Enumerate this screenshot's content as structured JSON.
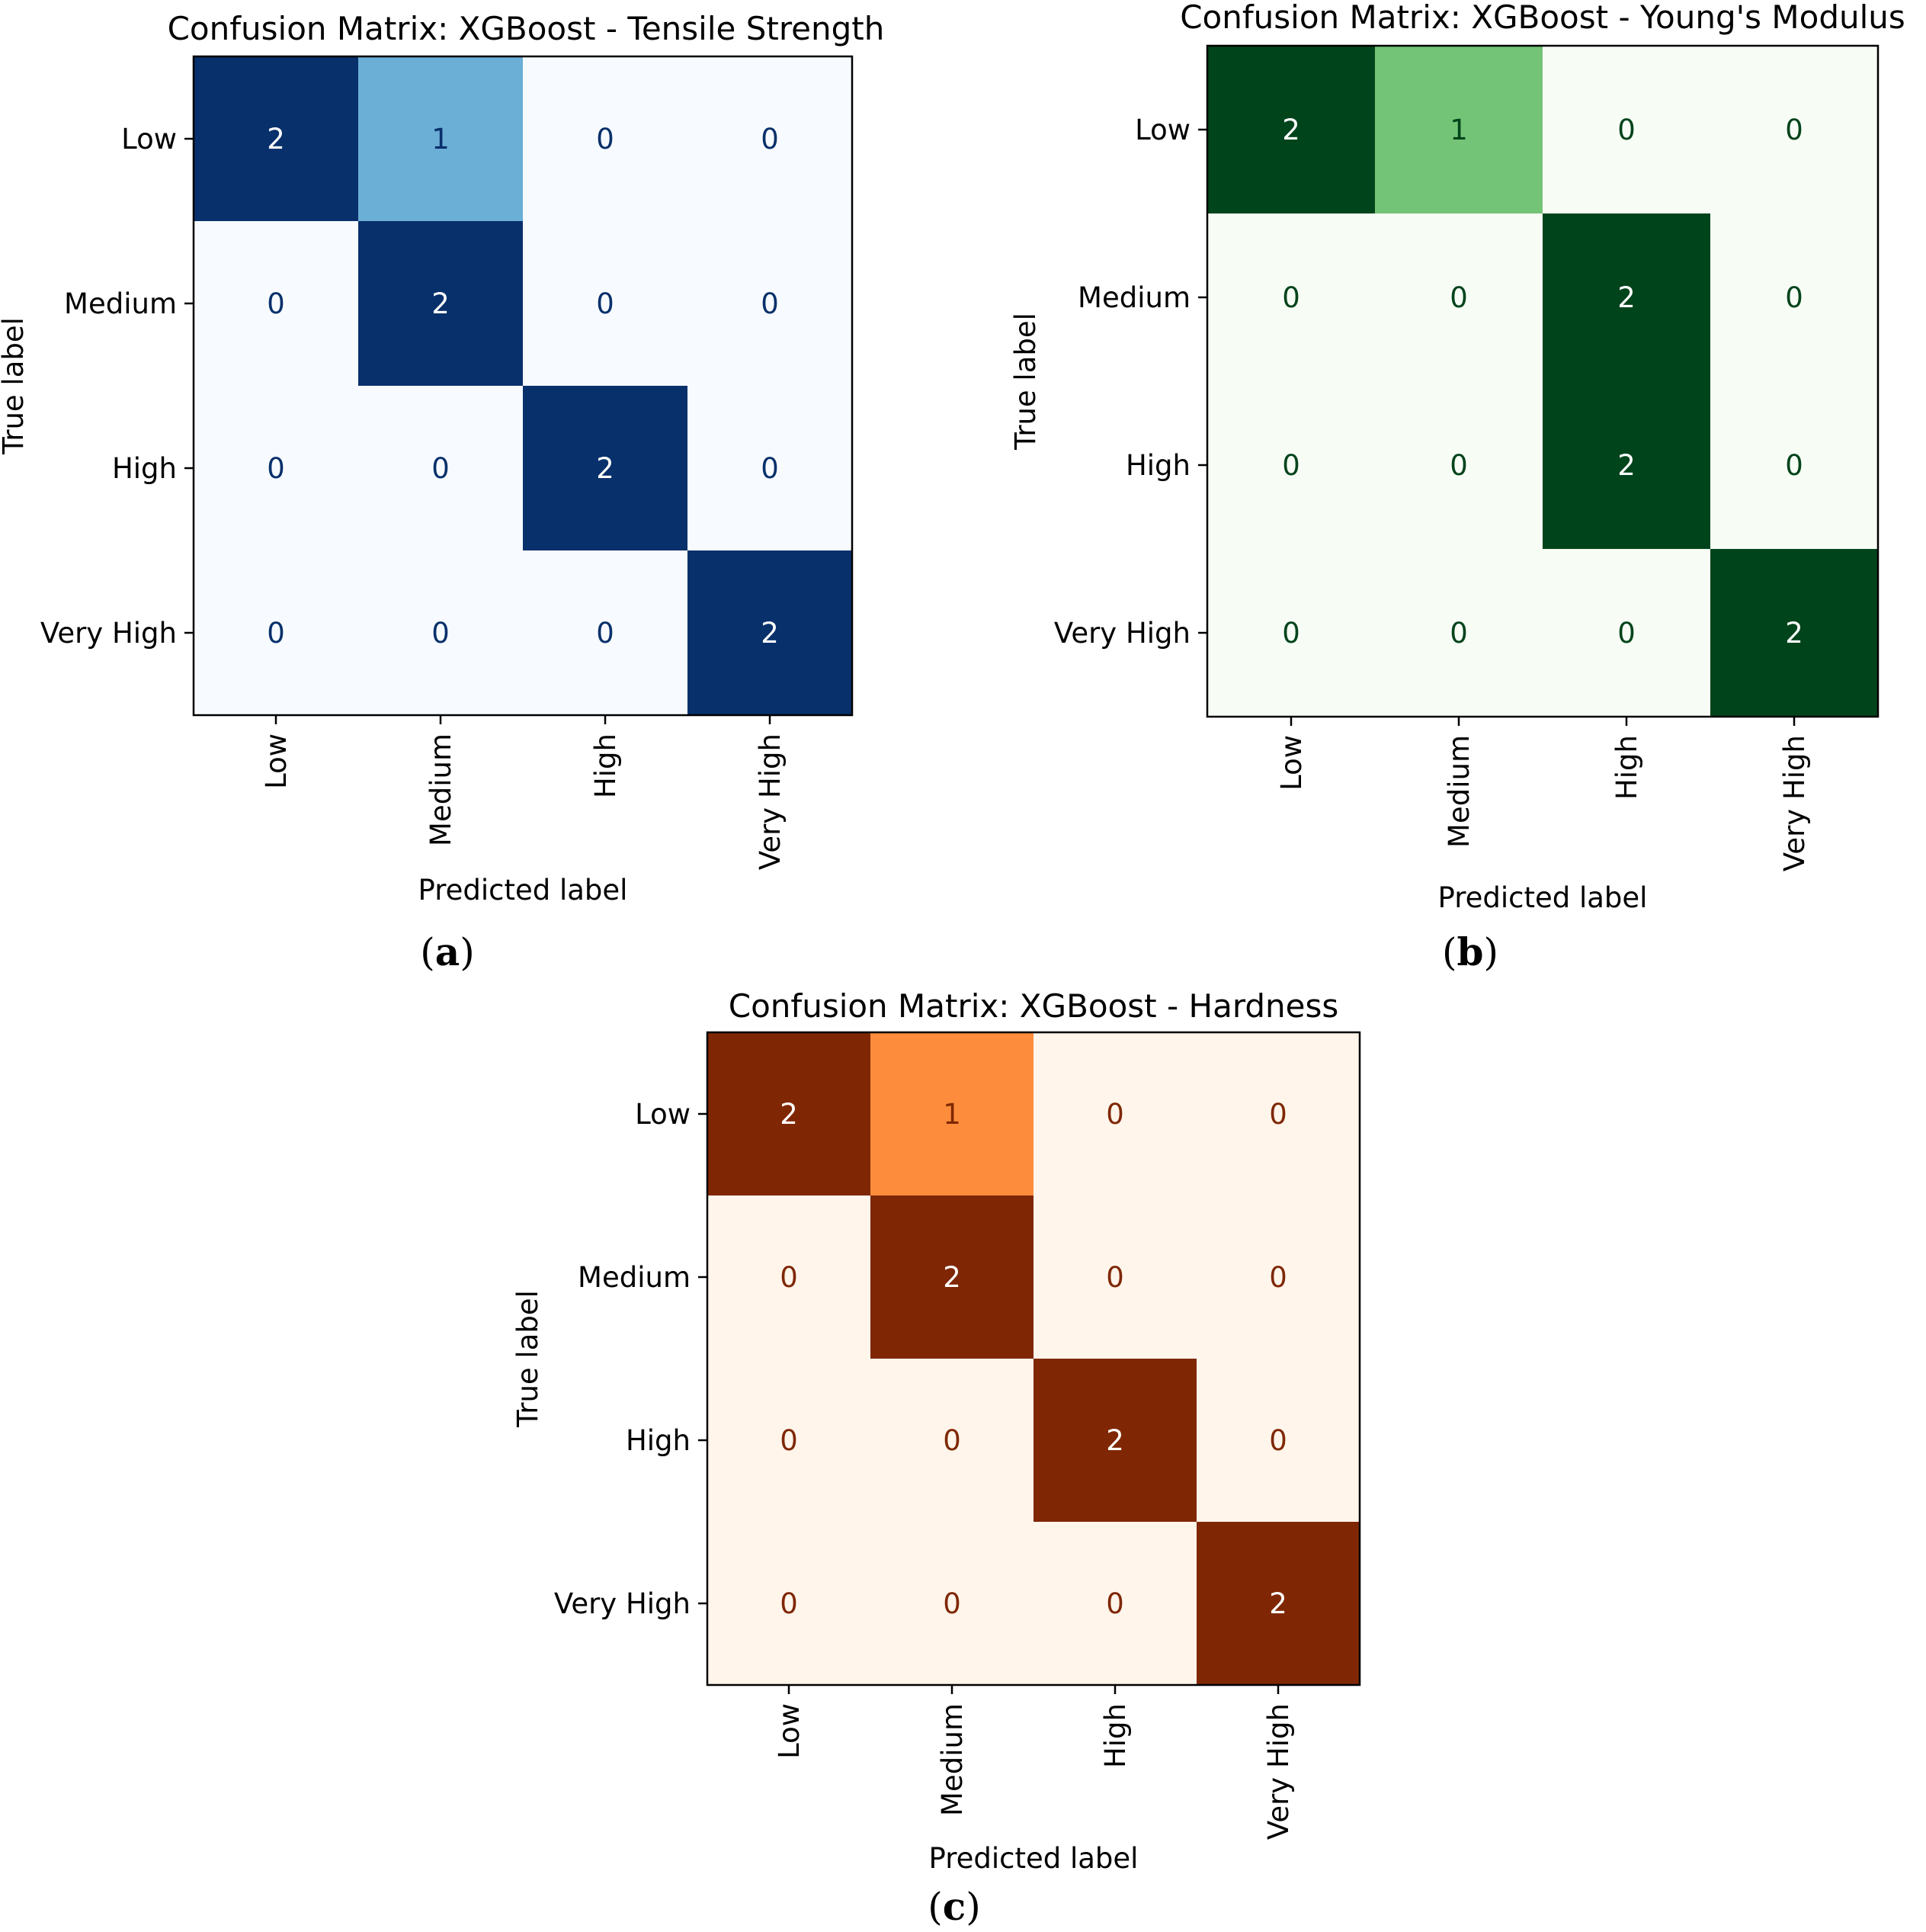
{
  "chart_data": [
    {
      "type": "heatmap",
      "panel": "a",
      "title": "Confusion Matrix: XGBoost - Tensile Strength",
      "xlabel": "Predicted label",
      "ylabel": "True label",
      "row_labels": [
        "Low",
        "Medium",
        "High",
        "Very High"
      ],
      "col_labels": [
        "Low",
        "Medium",
        "High",
        "Very High"
      ],
      "matrix": [
        [
          2,
          1,
          0,
          0
        ],
        [
          0,
          2,
          0,
          0
        ],
        [
          0,
          0,
          2,
          0
        ],
        [
          0,
          0,
          0,
          2
        ]
      ],
      "value_range": [
        0,
        2
      ],
      "colormap": {
        "low": "#f7fbff",
        "mid": "#6baed6",
        "high": "#08306b"
      },
      "text_colors": {
        "on_dark": "#ffffff",
        "on_light": "#08306b"
      }
    },
    {
      "type": "heatmap",
      "panel": "b",
      "title": "Confusion Matrix: XGBoost - Young's Modulus",
      "xlabel": "Predicted label",
      "ylabel": "True label",
      "row_labels": [
        "Low",
        "Medium",
        "High",
        "Very High"
      ],
      "col_labels": [
        "Low",
        "Medium",
        "High",
        "Very High"
      ],
      "matrix": [
        [
          2,
          1,
          0,
          0
        ],
        [
          0,
          0,
          2,
          0
        ],
        [
          0,
          0,
          2,
          0
        ],
        [
          0,
          0,
          0,
          2
        ]
      ],
      "value_range": [
        0,
        2
      ],
      "colormap": {
        "low": "#f7fcf5",
        "mid": "#73c476",
        "high": "#00441b"
      },
      "text_colors": {
        "on_dark": "#ffffff",
        "on_light": "#00441b"
      }
    },
    {
      "type": "heatmap",
      "panel": "c",
      "title": "Confusion Matrix: XGBoost - Hardness",
      "xlabel": "Predicted label",
      "ylabel": "True label",
      "row_labels": [
        "Low",
        "Medium",
        "High",
        "Very High"
      ],
      "col_labels": [
        "Low",
        "Medium",
        "High",
        "Very High"
      ],
      "matrix": [
        [
          2,
          1,
          0,
          0
        ],
        [
          0,
          2,
          0,
          0
        ],
        [
          0,
          0,
          2,
          0
        ],
        [
          0,
          0,
          0,
          2
        ]
      ],
      "value_range": [
        0,
        2
      ],
      "colormap": {
        "low": "#fff5eb",
        "mid": "#fd8d3c",
        "high": "#7f2704"
      },
      "text_colors": {
        "on_dark": "#ffffff",
        "on_light": "#7f2704"
      }
    }
  ]
}
